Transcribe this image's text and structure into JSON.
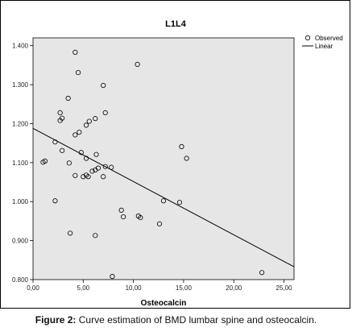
{
  "chart_data": {
    "type": "scatter",
    "title": "L1L4",
    "xlabel": "Osteocalcin",
    "ylabel": "",
    "xlim": [
      0,
      26
    ],
    "ylim": [
      0.8,
      1.42
    ],
    "x_ticks": [
      "0,00",
      "5,00",
      "10,00",
      "15,00",
      "20,00",
      "25,00"
    ],
    "x_tick_values": [
      0,
      5,
      10,
      15,
      20,
      25
    ],
    "y_ticks": [
      "0.800",
      "0.900",
      "1.000",
      "1.100",
      "1.200",
      "1.300",
      "1.400"
    ],
    "y_tick_values": [
      0.8,
      0.9,
      1.0,
      1.1,
      1.2,
      1.3,
      1.4
    ],
    "background_color": "#e6e6e6",
    "grid": false,
    "legend_position": "top-right",
    "legend": {
      "observed": "Observed",
      "linear": "Linear"
    },
    "series": [
      {
        "name": "Observed",
        "marker": "open-circle",
        "points": [
          [
            4.2,
            1.383
          ],
          [
            10.4,
            1.352
          ],
          [
            4.5,
            1.331
          ],
          [
            7.0,
            1.298
          ],
          [
            3.5,
            1.265
          ],
          [
            2.7,
            1.228
          ],
          [
            7.2,
            1.228
          ],
          [
            2.9,
            1.214
          ],
          [
            2.7,
            1.208
          ],
          [
            6.2,
            1.213
          ],
          [
            5.6,
            1.206
          ],
          [
            5.3,
            1.196
          ],
          [
            4.6,
            1.178
          ],
          [
            4.2,
            1.171
          ],
          [
            2.2,
            1.153
          ],
          [
            14.8,
            1.141
          ],
          [
            2.9,
            1.131
          ],
          [
            4.8,
            1.126
          ],
          [
            6.3,
            1.121
          ],
          [
            15.3,
            1.111
          ],
          [
            5.3,
            1.111
          ],
          [
            1.2,
            1.104
          ],
          [
            1.0,
            1.101
          ],
          [
            3.6,
            1.099
          ],
          [
            7.2,
            1.09
          ],
          [
            7.8,
            1.088
          ],
          [
            6.5,
            1.086
          ],
          [
            6.2,
            1.081
          ],
          [
            5.9,
            1.078
          ],
          [
            4.2,
            1.067
          ],
          [
            5.0,
            1.064
          ],
          [
            5.5,
            1.064
          ],
          [
            5.3,
            1.068
          ],
          [
            7.0,
            1.064
          ],
          [
            2.2,
            1.002
          ],
          [
            13.0,
            1.002
          ],
          [
            14.6,
            0.998
          ],
          [
            8.8,
            0.978
          ],
          [
            9.0,
            0.961
          ],
          [
            10.5,
            0.963
          ],
          [
            10.7,
            0.959
          ],
          [
            12.6,
            0.943
          ],
          [
            3.7,
            0.919
          ],
          [
            6.2,
            0.913
          ],
          [
            22.8,
            0.818
          ],
          [
            7.9,
            0.808
          ]
        ]
      },
      {
        "name": "Linear",
        "type": "line",
        "points": [
          [
            0,
            1.188
          ],
          [
            26,
            0.833
          ]
        ]
      }
    ]
  },
  "caption": {
    "label": "Figure 2:",
    "text": " Curve estimation of BMD lumbar spine and osteocalcin."
  }
}
